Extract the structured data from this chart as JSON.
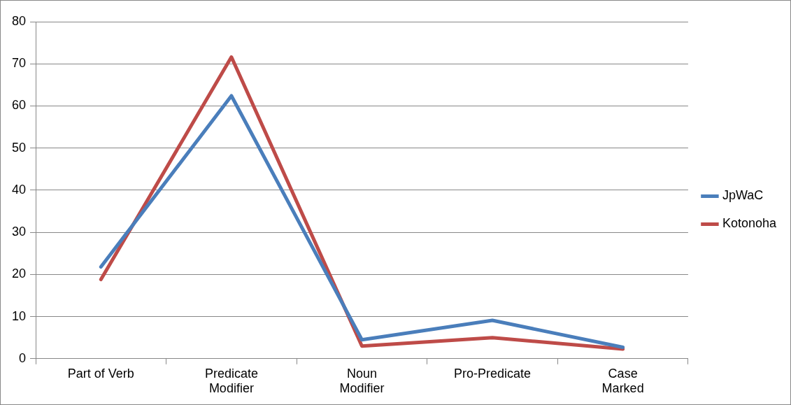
{
  "chart_data": {
    "type": "line",
    "categories": [
      "Part of Verb",
      "Predicate Modifier",
      "Noun Modifier",
      "Pro-Predicate",
      "Case Marked"
    ],
    "series": [
      {
        "name": "JpWaC",
        "color": "#4a7ebb",
        "values": [
          21.8,
          62.4,
          4.5,
          9.1,
          2.7
        ]
      },
      {
        "name": "Kotonoha",
        "color": "#be4b48",
        "values": [
          18.8,
          71.6,
          3.0,
          5.0,
          2.3
        ]
      }
    ],
    "ylim": [
      0,
      80
    ],
    "yticks": [
      0,
      10,
      20,
      30,
      40,
      50,
      60,
      70,
      80
    ],
    "grid": "y",
    "legend": "right",
    "marker": "none",
    "line_style": "solid"
  }
}
